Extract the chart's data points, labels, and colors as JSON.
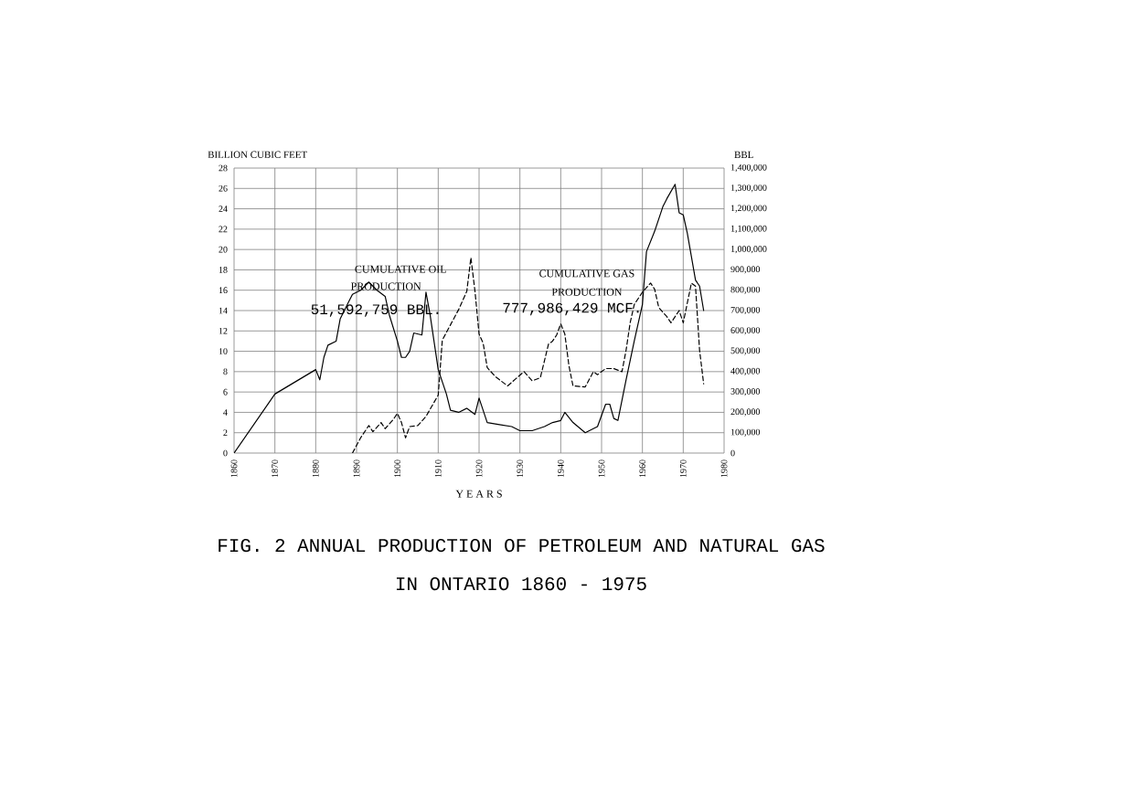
{
  "chart_data": {
    "type": "line",
    "title": "FIG. 2   ANNUAL PRODUCTION OF PETROLEUM AND NATURAL GAS",
    "subtitle": "IN ONTARIO 1860 - 1975",
    "xlabel": "Y E A R S",
    "ylabel": "BILLION CUBIC FEET",
    "y2label": "BBL",
    "xlim": [
      1860,
      1980
    ],
    "xticks": [
      1860,
      1870,
      1880,
      1890,
      1900,
      1910,
      1920,
      1930,
      1940,
      1950,
      1960,
      1970,
      1980
    ],
    "ylim": [
      0,
      28
    ],
    "yticks": [
      0,
      2,
      4,
      6,
      8,
      10,
      12,
      14,
      16,
      18,
      20,
      22,
      24,
      26,
      28
    ],
    "y2lim": [
      0,
      1400000
    ],
    "y2ticks": [
      0,
      {
        "value": 100000,
        "label": "100,000"
      },
      {
        "value": 200000,
        "label": "200,000"
      },
      {
        "value": 300000,
        "label": "300,000"
      },
      {
        "value": 400000,
        "label": "400,000"
      },
      {
        "value": 500000,
        "label": "500,000"
      },
      {
        "value": 600000,
        "label": "600,000"
      },
      {
        "value": 700000,
        "label": "700,000"
      },
      {
        "value": 800000,
        "label": "800,000"
      },
      {
        "value": 900000,
        "label": "900,000"
      },
      {
        "value": 1000000,
        "label": "1,000,000"
      },
      {
        "value": 1100000,
        "label": "1,100,000"
      },
      {
        "value": 1200000,
        "label": "1,200,000"
      },
      {
        "value": 1300000,
        "label": "1,300,000"
      },
      {
        "value": 1400000,
        "label": "1,400,000"
      }
    ],
    "grid": true,
    "marker": "none",
    "annotations": [
      "CUMULATIVE OIL",
      "PRODUCTION",
      "51,592,759 BBL.",
      "CUMULATIVE GAS",
      "PRODUCTION",
      "777,986,429 MCF."
    ],
    "series": [
      {
        "color": "#000000",
        "line_style": "solid",
        "axis": "y2",
        "x": [
          1860,
          1870,
          1880,
          1881,
          1882,
          1883,
          1885,
          1886,
          1888,
          1889,
          1891,
          1893,
          1895,
          1897,
          1898,
          1900,
          1901,
          1902,
          1903,
          1904,
          1906,
          1907,
          1908,
          1910,
          1912,
          1913,
          1915,
          1917,
          1919,
          1920,
          1922,
          1925,
          1928,
          1930,
          1933,
          1936,
          1938,
          1940,
          1941,
          1943,
          1946,
          1949,
          1951,
          1952,
          1953,
          1954,
          1956,
          1958,
          1960,
          1961,
          1963,
          1965,
          1966,
          1968,
          1969,
          1970,
          1971,
          1973,
          1974,
          1975
        ],
        "values": [
          0,
          290000,
          410000,
          360000,
          470000,
          530000,
          550000,
          660000,
          740000,
          780000,
          800000,
          840000,
          800000,
          770000,
          680000,
          550000,
          470000,
          470000,
          500000,
          590000,
          580000,
          790000,
          680000,
          410000,
          290000,
          210000,
          200000,
          220000,
          190000,
          270000,
          150000,
          140000,
          130000,
          110000,
          110000,
          130000,
          150000,
          160000,
          200000,
          150000,
          100000,
          130000,
          240000,
          240000,
          170000,
          160000,
          360000,
          550000,
          730000,
          990000,
          1090000,
          1210000,
          1250000,
          1320000,
          1180000,
          1170000,
          1080000,
          850000,
          820000,
          700000
        ]
      },
      {
        "color": "#000000",
        "line_style": "dashed",
        "x": [
          1889,
          1891,
          1893,
          1894,
          1896,
          1897,
          1899,
          1900,
          1901,
          1902,
          1903,
          1905,
          1907,
          1910,
          1911,
          1913,
          1915,
          1917,
          1918,
          1919,
          1920,
          1921,
          1922,
          1924,
          1926,
          1927,
          1929,
          1931,
          1933,
          1935,
          1937,
          1938,
          1939,
          1940,
          1941,
          1942,
          1943,
          1946,
          1948,
          1949,
          1951,
          1953,
          1955,
          1956,
          1957,
          1958,
          1960,
          1962,
          1963,
          1964,
          1966,
          1967,
          1969,
          1970,
          1972,
          1973,
          1974,
          1975
        ],
        "values": [
          0,
          1.5,
          2.7,
          2.1,
          3.0,
          2.4,
          3.3,
          3.9,
          3.0,
          1.5,
          2.6,
          2.7,
          3.6,
          5.7,
          11.1,
          12.6,
          14.1,
          15.9,
          19.2,
          15.9,
          11.7,
          10.8,
          8.4,
          7.5,
          6.9,
          6.6,
          7.3,
          8.0,
          7.1,
          7.4,
          10.7,
          11.0,
          11.6,
          12.7,
          11.7,
          8.6,
          6.6,
          6.5,
          8.0,
          7.7,
          8.3,
          8.3,
          8.0,
          10.1,
          12.8,
          14.6,
          15.8,
          16.7,
          16.1,
          14.3,
          13.4,
          12.8,
          14.0,
          12.8,
          16.7,
          16.4,
          10.1,
          6.8
        ]
      }
    ]
  }
}
